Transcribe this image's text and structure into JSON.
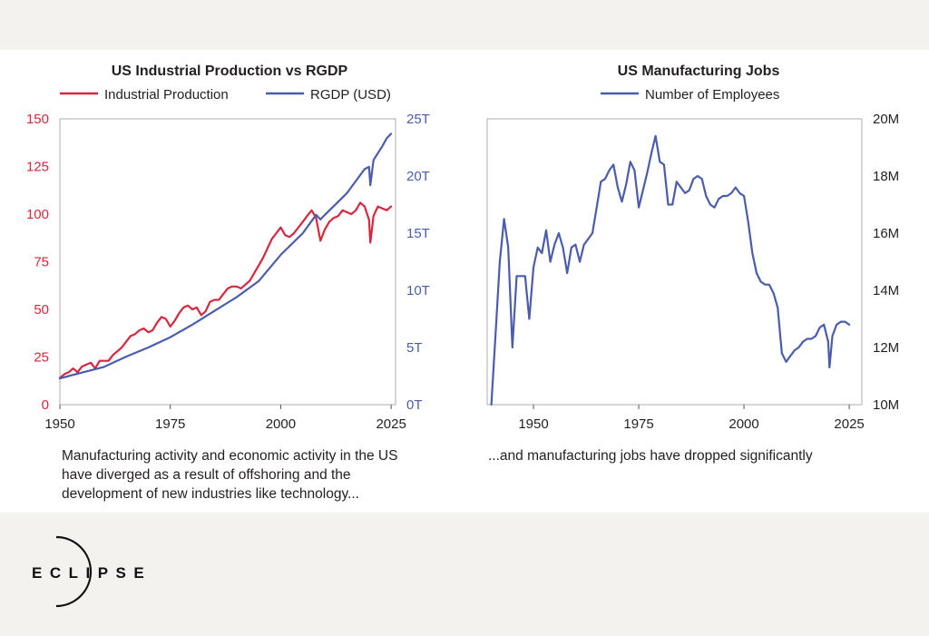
{
  "chart_data": [
    {
      "type": "line",
      "title": "US Industrial Production vs RGDP",
      "caption": "Manufacturing activity and economic activity in the US have diverged as a result of offshoring and the development of new industries like technology...",
      "x_ticks": [
        "1950",
        "1975",
        "2000",
        "2025"
      ],
      "xlim": [
        1950,
        2026
      ],
      "y_left": {
        "ticks": [
          "0",
          "25",
          "50",
          "75",
          "100",
          "125",
          "150"
        ],
        "lim": [
          0,
          150
        ],
        "color": "#d7263d"
      },
      "y_right": {
        "ticks": [
          "0T",
          "5T",
          "10T",
          "15T",
          "20T",
          "25T"
        ],
        "lim": [
          0,
          25
        ],
        "color": "#4a5cad"
      },
      "legend_position": "top",
      "grid": false,
      "series": [
        {
          "name": "Industrial Production",
          "axis": "left",
          "color": "#d7263d",
          "x": [
            1950,
            1951,
            1952,
            1953,
            1954,
            1955,
            1956,
            1957,
            1958,
            1959,
            1960,
            1961,
            1962,
            1963,
            1964,
            1965,
            1966,
            1967,
            1968,
            1969,
            1970,
            1971,
            1972,
            1973,
            1974,
            1975,
            1976,
            1977,
            1978,
            1979,
            1980,
            1981,
            1982,
            1983,
            1984,
            1985,
            1986,
            1987,
            1988,
            1989,
            1990,
            1991,
            1992,
            1993,
            1994,
            1995,
            1996,
            1997,
            1998,
            1999,
            2000,
            2001,
            2002,
            2003,
            2004,
            2005,
            2006,
            2007,
            2008,
            2009,
            2010,
            2011,
            2012,
            2013,
            2014,
            2015,
            2016,
            2017,
            2018,
            2019,
            2020,
            2020.3,
            2021,
            2022,
            2023,
            2024,
            2025
          ],
          "values": [
            14,
            16,
            17,
            19,
            17,
            20,
            21,
            22,
            19,
            23,
            23,
            23,
            26,
            28,
            30,
            33,
            36,
            37,
            39,
            40,
            38,
            39,
            43,
            46,
            45,
            41,
            44,
            48,
            51,
            52,
            50,
            51,
            47,
            49,
            54,
            55,
            55,
            58,
            61,
            62,
            62,
            61,
            63,
            65,
            69,
            73,
            77,
            82,
            87,
            90,
            93,
            89,
            88,
            90,
            93,
            96,
            99,
            102,
            98,
            86,
            92,
            96,
            98,
            99,
            102,
            101,
            100,
            102,
            106,
            104,
            97,
            85,
            99,
            104,
            103,
            102,
            104
          ]
        },
        {
          "name": "RGDP (USD)",
          "axis": "right",
          "color": "#4a5cad",
          "x": [
            1950,
            1955,
            1960,
            1965,
            1970,
            1975,
            1980,
            1985,
            1990,
            1995,
            2000,
            2005,
            2008,
            2009,
            2010,
            2015,
            2019,
            2020,
            2020.3,
            2021,
            2022,
            2023,
            2024,
            2025
          ],
          "values": [
            2.3,
            2.8,
            3.3,
            4.2,
            5.0,
            5.9,
            7.0,
            8.2,
            9.4,
            10.8,
            13.1,
            15.0,
            16.6,
            16.2,
            16.6,
            18.5,
            20.6,
            20.8,
            19.2,
            21.4,
            22.0,
            22.6,
            23.3,
            23.7
          ]
        }
      ]
    },
    {
      "type": "line",
      "title": "US Manufacturing Jobs",
      "caption": "...and manufacturing jobs have dropped significantly",
      "x_ticks": [
        "1950",
        "1975",
        "2000",
        "2025"
      ],
      "xlim": [
        1939,
        2028
      ],
      "y_right": {
        "ticks": [
          "10M",
          "12M",
          "14M",
          "16M",
          "18M",
          "20M"
        ],
        "lim": [
          10,
          20
        ],
        "color": "#231f20"
      },
      "legend_position": "top",
      "grid": false,
      "series": [
        {
          "name": "Number of Employees",
          "axis": "right",
          "color": "#4a5cad",
          "x": [
            1940,
            1941,
            1942,
            1943,
            1944,
            1945,
            1946,
            1947,
            1948,
            1949,
            1950,
            1951,
            1952,
            1953,
            1954,
            1955,
            1956,
            1957,
            1958,
            1959,
            1960,
            1961,
            1962,
            1963,
            1964,
            1965,
            1966,
            1967,
            1968,
            1969,
            1970,
            1971,
            1972,
            1973,
            1974,
            1975,
            1976,
            1977,
            1978,
            1979,
            1980,
            1981,
            1982,
            1983,
            1984,
            1985,
            1986,
            1987,
            1988,
            1989,
            1990,
            1991,
            1992,
            1993,
            1994,
            1995,
            1996,
            1997,
            1998,
            1999,
            2000,
            2001,
            2002,
            2003,
            2004,
            2005,
            2006,
            2007,
            2008,
            2009,
            2010,
            2011,
            2012,
            2013,
            2014,
            2015,
            2016,
            2017,
            2018,
            2019,
            2020,
            2020.3,
            2021,
            2022,
            2023,
            2024,
            2025
          ],
          "values": [
            10.0,
            12.5,
            15.0,
            16.5,
            15.5,
            12.0,
            14.5,
            14.5,
            14.5,
            13.0,
            14.8,
            15.5,
            15.3,
            16.1,
            15.0,
            15.6,
            16.0,
            15.5,
            14.6,
            15.5,
            15.6,
            15.0,
            15.6,
            15.8,
            16.0,
            16.9,
            17.8,
            17.9,
            18.2,
            18.4,
            17.6,
            17.1,
            17.7,
            18.5,
            18.2,
            16.9,
            17.5,
            18.1,
            18.8,
            19.4,
            18.5,
            18.4,
            17.0,
            17.0,
            17.8,
            17.6,
            17.4,
            17.5,
            17.9,
            18.0,
            17.9,
            17.3,
            17.0,
            16.9,
            17.2,
            17.3,
            17.3,
            17.4,
            17.6,
            17.4,
            17.3,
            16.4,
            15.3,
            14.6,
            14.3,
            14.2,
            14.2,
            13.9,
            13.4,
            11.8,
            11.5,
            11.7,
            11.9,
            12.0,
            12.2,
            12.3,
            12.3,
            12.4,
            12.7,
            12.8,
            12.2,
            11.3,
            12.4,
            12.8,
            12.9,
            12.9,
            12.8
          ]
        }
      ]
    }
  ]
}
